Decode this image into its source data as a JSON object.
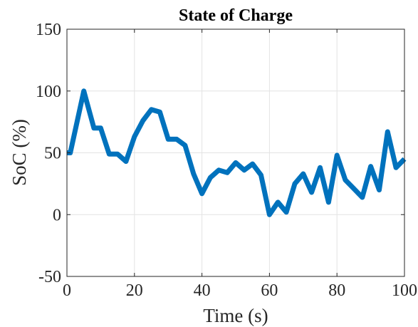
{
  "chart_data": {
    "type": "line",
    "title": "State of Charge",
    "xlabel": "Time (s)",
    "ylabel": "SoC (%)",
    "xlim": [
      0,
      100
    ],
    "ylim": [
      -50,
      150
    ],
    "xticks": [
      0,
      20,
      40,
      60,
      80,
      100
    ],
    "yticks": [
      -50,
      0,
      50,
      100,
      150
    ],
    "grid": true,
    "color": "#0072BD",
    "series": [
      {
        "x": [
          0,
          1,
          5,
          8,
          10,
          12.5,
          15,
          17.5,
          20,
          22.5,
          25,
          27.5,
          30,
          32.5,
          35,
          37.5,
          40,
          42.5,
          45,
          47.5,
          50,
          52.5,
          55,
          57.5,
          60,
          62.5,
          65,
          67.5,
          70,
          72.5,
          75,
          77.5,
          80,
          82.5,
          85,
          87.5,
          90,
          92.5,
          95,
          97.5,
          100
        ],
        "y": [
          50,
          50,
          100,
          70,
          70,
          49,
          49,
          43,
          63,
          76,
          85,
          83,
          61,
          61,
          56,
          33,
          17,
          30,
          36,
          34,
          42,
          36,
          41,
          32,
          0,
          10,
          2,
          25,
          33,
          18,
          38,
          10,
          48,
          28,
          21,
          14,
          39,
          20,
          67,
          38,
          45
        ]
      }
    ]
  }
}
